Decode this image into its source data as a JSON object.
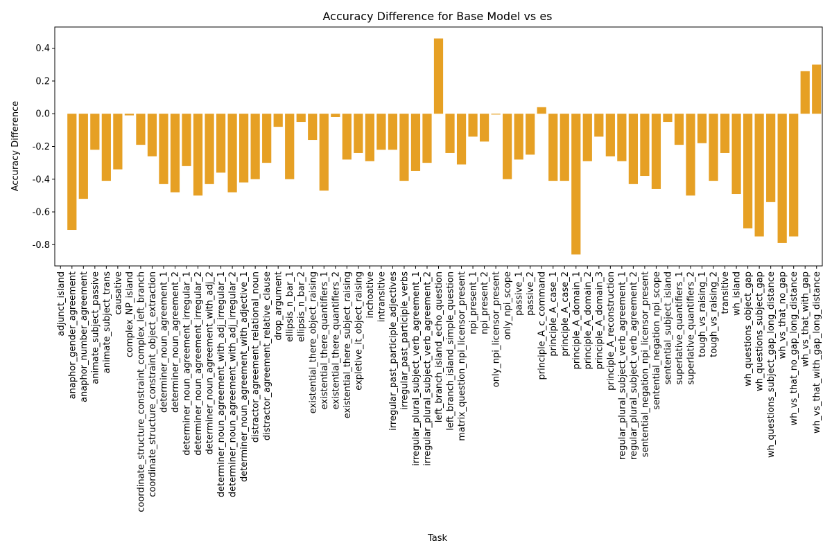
{
  "chart_data": {
    "type": "bar",
    "title": "Accuracy Difference for Base Model vs es",
    "xlabel": "Task",
    "ylabel": "Accuracy Difference",
    "ylim": [
      -0.93,
      0.53
    ],
    "yticks": [
      "-0.8",
      "-0.6",
      "-0.4",
      "-0.2",
      "0.0",
      "0.2",
      "0.4"
    ],
    "bar_color": "#e6a024",
    "grid": false,
    "categories": [
      "adjunct_island",
      "anaphor_gender_agreement",
      "anaphor_number_agreement",
      "animate_subject_passive",
      "animate_subject_trans",
      "causative",
      "complex_NP_island",
      "coordinate_structure_constraint_complex_left_branch",
      "coordinate_structure_constraint_object_extraction",
      "determiner_noun_agreement_1",
      "determiner_noun_agreement_2",
      "determiner_noun_agreement_irregular_1",
      "determiner_noun_agreement_irregular_2",
      "determiner_noun_agreement_with_adj_2",
      "determiner_noun_agreement_with_adj_irregular_1",
      "determiner_noun_agreement_with_adj_irregular_2",
      "determiner_noun_agreement_with_adjective_1",
      "distractor_agreement_relational_noun",
      "distractor_agreement_relative_clause",
      "drop_argument",
      "ellipsis_n_bar_1",
      "ellipsis_n_bar_2",
      "existential_there_object_raising",
      "existential_there_quantifiers_1",
      "existential_there_quantifiers_2",
      "existential_there_subject_raising",
      "expletive_it_object_raising",
      "inchoative",
      "intransitive",
      "irregular_past_participle_adjectives",
      "irregular_past_participle_verbs",
      "irregular_plural_subject_verb_agreement_1",
      "irregular_plural_subject_verb_agreement_2",
      "left_branch_island_echo_question",
      "left_branch_island_simple_question",
      "matrix_question_npi_licensor_present",
      "npi_present_1",
      "npi_present_2",
      "only_npi_licensor_present",
      "only_npi_scope",
      "passive_1",
      "passive_2",
      "principle_A_c_command",
      "principle_A_case_1",
      "principle_A_case_2",
      "principle_A_domain_1",
      "principle_A_domain_2",
      "principle_A_domain_3",
      "principle_A_reconstruction",
      "regular_plural_subject_verb_agreement_1",
      "regular_plural_subject_verb_agreement_2",
      "sentential_negation_npi_licensor_present",
      "sentential_negation_npi_scope",
      "sentential_subject_island",
      "superlative_quantifiers_1",
      "superlative_quantifiers_2",
      "tough_vs_raising_1",
      "tough_vs_raising_2",
      "transitive",
      "wh_island",
      "wh_questions_object_gap",
      "wh_questions_subject_gap",
      "wh_questions_subject_gap_long_distance",
      "wh_vs_that_no_gap",
      "wh_vs_that_no_gap_long_distance",
      "wh_vs_that_with_gap",
      "wh_vs_that_with_gap_long_distance"
    ],
    "values": [
      0.0,
      -0.71,
      -0.52,
      -0.22,
      -0.41,
      -0.34,
      -0.01,
      -0.19,
      -0.26,
      -0.43,
      -0.48,
      -0.32,
      -0.5,
      -0.43,
      -0.36,
      -0.48,
      -0.42,
      -0.4,
      -0.3,
      -0.08,
      -0.4,
      -0.05,
      -0.16,
      -0.47,
      -0.02,
      -0.28,
      -0.24,
      -0.29,
      -0.22,
      -0.22,
      -0.41,
      -0.35,
      -0.3,
      0.46,
      -0.24,
      -0.31,
      -0.14,
      -0.17,
      -0.005,
      -0.4,
      -0.28,
      -0.25,
      0.04,
      -0.41,
      -0.41,
      -0.86,
      -0.29,
      -0.14,
      -0.26,
      -0.29,
      -0.43,
      -0.38,
      -0.46,
      -0.05,
      -0.19,
      -0.5,
      -0.18,
      -0.41,
      -0.24,
      -0.49,
      -0.7,
      -0.75,
      -0.54,
      -0.79,
      -0.75,
      0.26,
      0.3
    ]
  }
}
